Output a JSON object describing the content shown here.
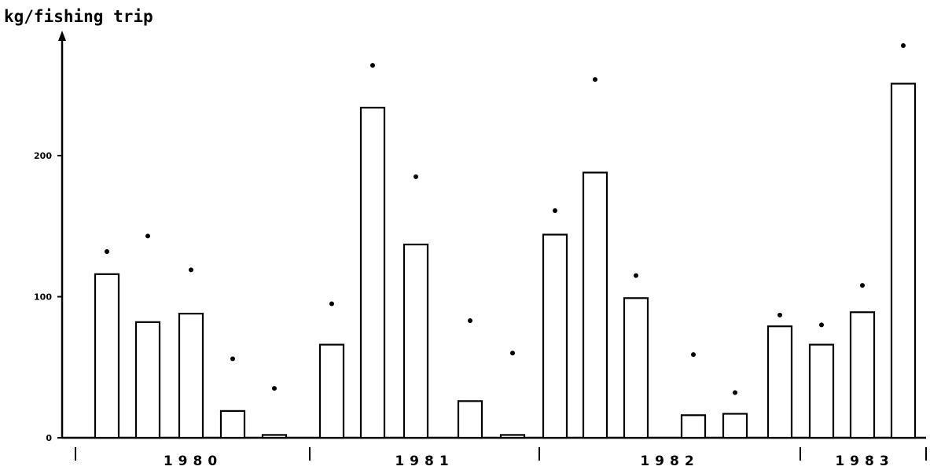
{
  "chart_data": {
    "type": "bar",
    "title": "",
    "ylabel": "kg/fishing trip",
    "xlabel": "",
    "ylim": [
      0,
      280
    ],
    "y_ticks": [
      {
        "value": 0,
        "label": "0"
      },
      {
        "value": 100,
        "label": "100"
      },
      {
        "value": 200,
        "label": "200"
      }
    ],
    "groups": [
      {
        "label": "1980",
        "first": 0,
        "last": 4
      },
      {
        "label": "1981",
        "first": 5,
        "last": 9
      },
      {
        "label": "1982",
        "first": 10,
        "last": 15
      },
      {
        "label": "1983",
        "first": 16,
        "last": 18
      }
    ],
    "series": [
      {
        "values": [
          116,
          82,
          88,
          19,
          2,
          66,
          234,
          137,
          26,
          2,
          144,
          188,
          99,
          16,
          17,
          79,
          66,
          89,
          251
        ]
      },
      {
        "values": [
          132,
          143,
          119,
          56,
          35,
          95,
          264,
          185,
          83,
          60,
          161,
          254,
          115,
          59,
          32,
          87,
          80,
          108,
          278
        ]
      }
    ],
    "grid": false,
    "legend": "none"
  }
}
